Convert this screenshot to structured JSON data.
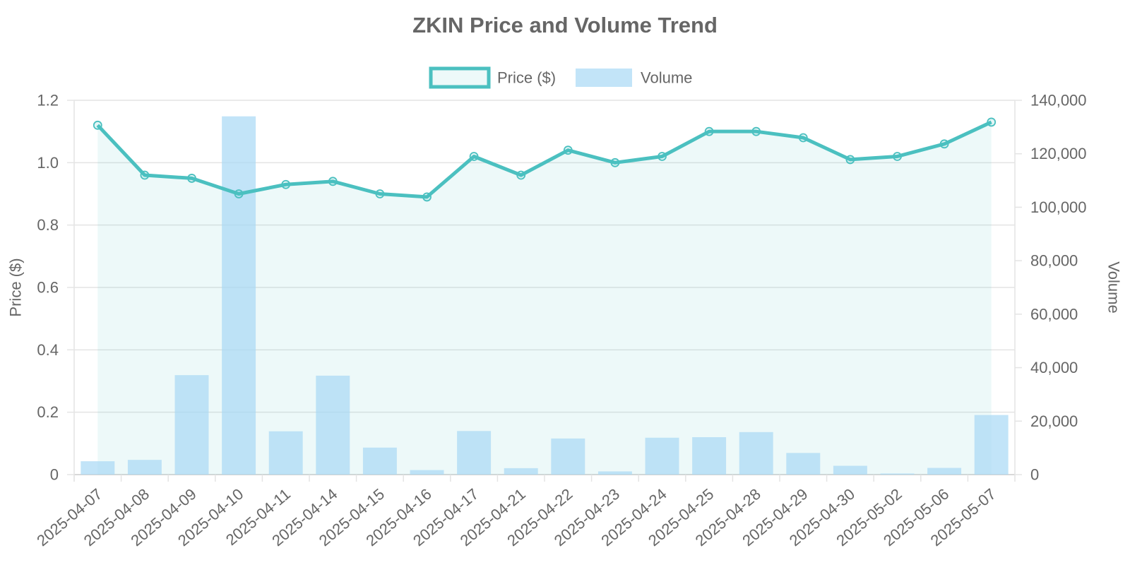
{
  "chart_data": {
    "type": "bar",
    "title": "ZKIN Price and Volume Trend",
    "categories": [
      "2025-04-07",
      "2025-04-08",
      "2025-04-09",
      "2025-04-10",
      "2025-04-11",
      "2025-04-14",
      "2025-04-15",
      "2025-04-16",
      "2025-04-17",
      "2025-04-21",
      "2025-04-22",
      "2025-04-23",
      "2025-04-24",
      "2025-04-25",
      "2025-04-28",
      "2025-04-29",
      "2025-04-30",
      "2025-05-02",
      "2025-05-06",
      "2025-05-07"
    ],
    "series": [
      {
        "name": "Price ($)",
        "type": "line",
        "axis": "left",
        "fill": true,
        "color": "#4bc0c0",
        "values": [
          1.12,
          0.96,
          0.95,
          0.9,
          0.93,
          0.94,
          0.9,
          0.89,
          1.02,
          0.96,
          1.04,
          1.0,
          1.02,
          1.1,
          1.1,
          1.08,
          1.01,
          1.02,
          1.06,
          1.13
        ]
      },
      {
        "name": "Volume",
        "type": "bar",
        "axis": "right",
        "color": "#a8d8f5",
        "values": [
          5000,
          5500,
          37200,
          134000,
          16200,
          37000,
          10100,
          1700,
          16300,
          2400,
          13500,
          1200,
          13800,
          14000,
          15900,
          8100,
          3300,
          400,
          2500,
          22300
        ]
      }
    ],
    "xlabel": "",
    "ylabel": "Price ($)",
    "y2label": "Volume",
    "ylim": [
      0,
      1.2
    ],
    "y2lim": [
      0,
      140000
    ],
    "yticks": [
      "0",
      "0.2",
      "0.4",
      "0.6",
      "0.8",
      "1.0",
      "1.2"
    ],
    "y2ticks": [
      "0",
      "20,000",
      "40,000",
      "60,000",
      "80,000",
      "100,000",
      "120,000",
      "140,000"
    ],
    "grid": true,
    "legend_position": "top-center"
  }
}
